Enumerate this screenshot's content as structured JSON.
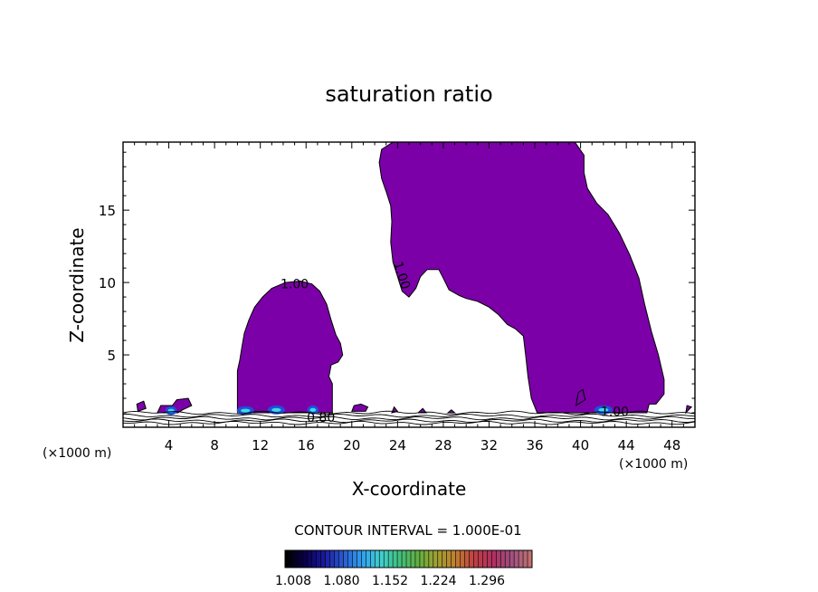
{
  "chart_data": {
    "type": "contour",
    "title": "saturation ratio",
    "xlabel": "X-coordinate",
    "ylabel": "Z-coordinate",
    "x_unit_label": "(×1000 m)",
    "x_unit_label_right": "(×1000 m)",
    "xlim": [
      0,
      50
    ],
    "ylim": [
      0,
      19.7
    ],
    "x_ticks": [
      4,
      8,
      12,
      16,
      20,
      24,
      28,
      32,
      36,
      40,
      44,
      48
    ],
    "y_ticks": [
      5,
      10,
      15
    ],
    "contour_labels": [
      {
        "text": "1.00",
        "x": 15,
        "y": 9.9
      },
      {
        "text": "1.00",
        "x": 24.4,
        "y": 10.5
      },
      {
        "text": "0.80",
        "x": 17.3,
        "y": 0.7
      },
      {
        "text": "1.00",
        "x": 43,
        "y": 1.1
      }
    ],
    "contour_interval_text": "CONTOUR INTERVAL = 1.000E-01",
    "colorbar": {
      "tick_labels": [
        "1.008",
        "1.080",
        "1.152",
        "1.224",
        "1.296"
      ],
      "colors": [
        "#000000",
        "#0a0050",
        "#1a1aa0",
        "#2a5ad0",
        "#30a0f0",
        "#40d0d0",
        "#40c080",
        "#60b040",
        "#a0a030",
        "#c08030",
        "#c04040",
        "#b03060",
        "#a05080",
        "#c07070"
      ]
    },
    "fill_color": "#7b00a8",
    "regions": [
      {
        "name": "tower",
        "outline": [
          [
            10.0,
            1.0
          ],
          [
            10.0,
            3.9
          ],
          [
            10.2,
            4.6
          ],
          [
            10.4,
            5.6
          ],
          [
            10.6,
            6.5
          ],
          [
            11.0,
            7.4
          ],
          [
            11.5,
            8.3
          ],
          [
            12.2,
            9.0
          ],
          [
            13.0,
            9.6
          ],
          [
            14.2,
            10.0
          ],
          [
            15.5,
            10.1
          ],
          [
            16.5,
            9.9
          ],
          [
            17.2,
            9.4
          ],
          [
            17.8,
            8.5
          ],
          [
            18.2,
            7.4
          ],
          [
            18.6,
            6.4
          ],
          [
            19.0,
            5.8
          ],
          [
            19.2,
            5.0
          ],
          [
            18.8,
            4.5
          ],
          [
            18.2,
            4.3
          ],
          [
            18.0,
            3.5
          ],
          [
            18.3,
            3.0
          ],
          [
            18.3,
            1.0
          ]
        ]
      },
      {
        "name": "plume",
        "outline": [
          [
            36.2,
            1.0
          ],
          [
            35.7,
            2.0
          ],
          [
            35.4,
            3.5
          ],
          [
            35.2,
            5.0
          ],
          [
            35.0,
            6.3
          ],
          [
            34.3,
            6.8
          ],
          [
            33.6,
            7.1
          ],
          [
            32.8,
            7.8
          ],
          [
            32.0,
            8.3
          ],
          [
            31.0,
            8.7
          ],
          [
            30.0,
            8.9
          ],
          [
            29.4,
            9.1
          ],
          [
            28.5,
            9.5
          ],
          [
            28.0,
            10.3
          ],
          [
            27.6,
            10.9
          ],
          [
            26.6,
            10.9
          ],
          [
            26.0,
            10.4
          ],
          [
            25.6,
            9.6
          ],
          [
            25.0,
            9.0
          ],
          [
            24.4,
            9.4
          ],
          [
            24.0,
            10.4
          ],
          [
            23.6,
            11.4
          ],
          [
            23.4,
            12.8
          ],
          [
            23.5,
            14.2
          ],
          [
            23.4,
            15.3
          ],
          [
            23.0,
            16.3
          ],
          [
            22.6,
            17.2
          ],
          [
            22.4,
            18.3
          ],
          [
            22.6,
            19.2
          ],
          [
            23.6,
            19.7
          ],
          [
            37.0,
            19.7
          ],
          [
            39.5,
            19.7
          ],
          [
            40.3,
            18.8
          ],
          [
            40.3,
            17.6
          ],
          [
            40.6,
            16.5
          ],
          [
            41.4,
            15.5
          ],
          [
            42.4,
            14.7
          ],
          [
            43.4,
            13.4
          ],
          [
            44.3,
            11.9
          ],
          [
            45.1,
            10.3
          ],
          [
            45.6,
            8.5
          ],
          [
            46.2,
            6.6
          ],
          [
            46.8,
            5.0
          ],
          [
            47.3,
            3.3
          ],
          [
            47.3,
            2.3
          ],
          [
            46.6,
            1.6
          ],
          [
            46.0,
            1.6
          ],
          [
            45.8,
            1.0
          ]
        ]
      },
      {
        "name": "blob1",
        "outline": [
          [
            1.3,
            1.1
          ],
          [
            1.2,
            1.6
          ],
          [
            1.8,
            1.8
          ],
          [
            2.0,
            1.3
          ]
        ]
      },
      {
        "name": "blob2",
        "outline": [
          [
            3.0,
            1.0
          ],
          [
            3.3,
            1.5
          ],
          [
            4.3,
            1.5
          ],
          [
            4.7,
            1.9
          ],
          [
            5.7,
            2.0
          ],
          [
            6.0,
            1.5
          ],
          [
            5.2,
            1.2
          ],
          [
            4.8,
            1.0
          ]
        ]
      },
      {
        "name": "blob3",
        "outline": [
          [
            20.0,
            1.1
          ],
          [
            20.2,
            1.5
          ],
          [
            20.8,
            1.6
          ],
          [
            21.4,
            1.4
          ],
          [
            21.2,
            1.1
          ]
        ]
      },
      {
        "name": "blob4",
        "outline": [
          [
            23.5,
            1.0
          ],
          [
            23.7,
            1.4
          ],
          [
            24.0,
            1.1
          ]
        ]
      },
      {
        "name": "blob5",
        "outline": [
          [
            25.8,
            1.0
          ],
          [
            26.2,
            1.3
          ],
          [
            26.5,
            1.0
          ]
        ]
      },
      {
        "name": "blob6",
        "outline": [
          [
            28.4,
            1.0
          ],
          [
            28.7,
            1.2
          ],
          [
            29.0,
            1.0
          ]
        ]
      },
      {
        "name": "blob7",
        "outline": [
          [
            39.6,
            1.5
          ],
          [
            39.8,
            2.4
          ],
          [
            40.2,
            2.6
          ],
          [
            40.4,
            1.9
          ]
        ]
      },
      {
        "name": "blob8",
        "outline": [
          [
            49.2,
            1.0
          ],
          [
            49.3,
            1.5
          ],
          [
            49.7,
            1.4
          ]
        ]
      }
    ],
    "cloud_patches": [
      {
        "x": 4.2,
        "y": 1.15,
        "w": 1.0,
        "h": 0.3
      },
      {
        "x": 10.7,
        "y": 1.15,
        "w": 1.5,
        "h": 0.3
      },
      {
        "x": 13.4,
        "y": 1.2,
        "w": 1.5,
        "h": 0.3
      },
      {
        "x": 16.6,
        "y": 1.2,
        "w": 1.0,
        "h": 0.3
      },
      {
        "x": 42.0,
        "y": 1.2,
        "w": 1.6,
        "h": 0.3
      }
    ]
  }
}
